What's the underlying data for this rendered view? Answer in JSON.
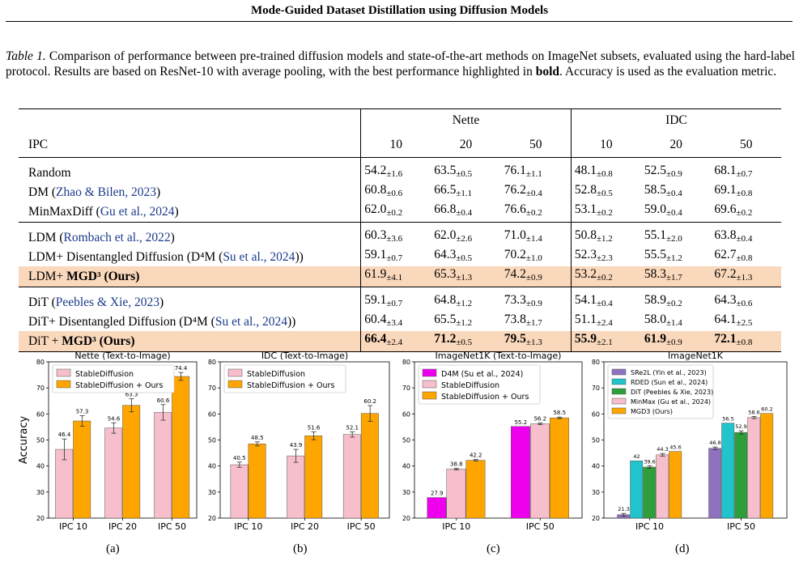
{
  "header": {
    "running_title": "Mode-Guided Dataset Distillation using Diffusion Models"
  },
  "caption": {
    "label": "Table 1.",
    "text_before_bold": " Comparison of performance between pre-trained diffusion models and state-of-the-art methods on ImageNet subsets, evaluated using the hard-label protocol. Results are based on ResNet-10 with average pooling, with the best performance highlighted in ",
    "bold_word": "bold",
    "text_after_bold": ". Accuracy is used as the evaluation metric."
  },
  "table": {
    "group_headers": [
      "Nette",
      "IDC"
    ],
    "ipc_label": "IPC",
    "ipc_values": [
      "10",
      "20",
      "50",
      "10",
      "20",
      "50"
    ],
    "sections": [
      {
        "rows": [
          {
            "name": "Random",
            "cite": "",
            "suffix": "",
            "cells": [
              [
                "54.2",
                "±1.6"
              ],
              [
                "63.5",
                "±0.5"
              ],
              [
                "76.1",
                "±1.1"
              ],
              [
                "48.1",
                "±0.8"
              ],
              [
                "52.5",
                "±0.9"
              ],
              [
                "68.1",
                "±0.7"
              ]
            ]
          },
          {
            "name": "DM (",
            "cite": "Zhao & Bilen, 2023",
            "suffix": ")",
            "cells": [
              [
                "60.8",
                "±0.6"
              ],
              [
                "66.5",
                "±1.1"
              ],
              [
                "76.2",
                "±0.4"
              ],
              [
                "52.8",
                "±0.5"
              ],
              [
                "58.5",
                "±0.4"
              ],
              [
                "69.1",
                "±0.8"
              ]
            ]
          },
          {
            "name": "MinMaxDiff (",
            "cite": "Gu et al., 2024",
            "suffix": ")",
            "cells": [
              [
                "62.0",
                "±0.2"
              ],
              [
                "66.8",
                "±0.4"
              ],
              [
                "76.6",
                "±0.2"
              ],
              [
                "53.1",
                "±0.2"
              ],
              [
                "59.0",
                "±0.4"
              ],
              [
                "69.6",
                "±0.2"
              ]
            ]
          }
        ]
      },
      {
        "rows": [
          {
            "name": "LDM (",
            "cite": "Rombach et al., 2022",
            "suffix": ")",
            "cells": [
              [
                "60.3",
                "±3.6"
              ],
              [
                "62.0",
                "±2.6"
              ],
              [
                "71.0",
                "±1.4"
              ],
              [
                "50.8",
                "±1.2"
              ],
              [
                "55.1",
                "±2.0"
              ],
              [
                "63.8",
                "±0.4"
              ]
            ]
          },
          {
            "name": "LDM+ Disentangled Diffusion (D⁴M (",
            "cite": "Su et al., 2024",
            "suffix": "))",
            "cells": [
              [
                "59.1",
                "±0.7"
              ],
              [
                "64.3",
                "±0.5"
              ],
              [
                "70.2",
                "±1.0"
              ],
              [
                "52.3",
                "±2.3"
              ],
              [
                "55.5",
                "±1.2"
              ],
              [
                "62.7",
                "±0.8"
              ]
            ]
          },
          {
            "name": "LDM+ ",
            "bold_name": "MGD³ (Ours)",
            "highlight": true,
            "cells": [
              [
                "61.9",
                "±4.1"
              ],
              [
                "65.3",
                "±1.3"
              ],
              [
                "74.2",
                "±0.9"
              ],
              [
                "53.2",
                "±0.2"
              ],
              [
                "58.3",
                "±1.7"
              ],
              [
                "67.2",
                "±1.3"
              ]
            ]
          }
        ]
      },
      {
        "rows": [
          {
            "name": "DiT (",
            "cite": "Peebles & Xie, 2023",
            "suffix": ")",
            "cells": [
              [
                "59.1",
                "±0.7"
              ],
              [
                "64.8",
                "±1.2"
              ],
              [
                "73.3",
                "±0.9"
              ],
              [
                "54.1",
                "±0.4"
              ],
              [
                "58.9",
                "±0.2"
              ],
              [
                "64.3",
                "±0.6"
              ]
            ]
          },
          {
            "name": "DiT+ Disentangled Diffusion (D⁴M (",
            "cite": "Su et al., 2024",
            "suffix": "))",
            "cells": [
              [
                "60.4",
                "±3.4"
              ],
              [
                "65.5",
                "±1.2"
              ],
              [
                "73.8",
                "±1.7"
              ],
              [
                "51.1",
                "±2.4"
              ],
              [
                "58.0",
                "±1.4"
              ],
              [
                "64.1",
                "±2.5"
              ]
            ]
          },
          {
            "name": "DiT + ",
            "bold_name": "MGD³ (Ours)",
            "highlight": true,
            "bold_cells": true,
            "cells": [
              [
                "66.4",
                "±2.4"
              ],
              [
                "71.2",
                "±0.5"
              ],
              [
                "79.5",
                "±1.3"
              ],
              [
                "55.9",
                "±2.1"
              ],
              [
                "61.9",
                "±0.9"
              ],
              [
                "72.1",
                "±0.8"
              ]
            ]
          }
        ]
      }
    ]
  },
  "colors": {
    "stable_diffusion": "#f7bfcb",
    "ours": "#ffa500",
    "d4m": "#ee00ee",
    "sre2l": "#8e72c0",
    "rded": "#21c4cc",
    "dit": "#2e9e3a",
    "minmax": "#f7bfcb",
    "mgd3": "#ffa500",
    "highlight_row": "#fad8bb"
  },
  "chart_data": [
    {
      "type": "bar",
      "title": "Nette (Text-to-Image)",
      "ylabel": "Accuracy",
      "ylim": [
        20,
        80
      ],
      "yticks": [
        20,
        30,
        40,
        50,
        60,
        70,
        80
      ],
      "grid": false,
      "legend_position": "top-left",
      "categories": [
        "IPC 10",
        "IPC 20",
        "IPC 50"
      ],
      "series": [
        {
          "name": "StableDiffusion",
          "color_key": "stable_diffusion",
          "values": [
            46.4,
            54.6,
            60.6
          ],
          "errors": [
            4.0,
            2.0,
            3.0
          ]
        },
        {
          "name": "StableDiffusion + Ours",
          "color_key": "ours",
          "values": [
            57.3,
            63.3,
            74.4
          ],
          "errors": [
            2.0,
            2.5,
            1.5
          ]
        }
      ],
      "sublabel": "(a)"
    },
    {
      "type": "bar",
      "title": "IDC (Text-to-Image)",
      "ylabel": "",
      "ylim": [
        20,
        80
      ],
      "yticks": [
        20,
        30,
        40,
        50,
        60,
        70,
        80
      ],
      "grid": false,
      "legend_position": "top-left",
      "categories": [
        "IPC 10",
        "IPC 20",
        "IPC 50"
      ],
      "series": [
        {
          "name": "StableDiffusion",
          "color_key": "stable_diffusion",
          "values": [
            40.5,
            43.9,
            52.1
          ],
          "errors": [
            1.0,
            2.5,
            1.0
          ]
        },
        {
          "name": "StableDiffusion + Ours",
          "color_key": "ours",
          "values": [
            48.5,
            51.6,
            60.2
          ],
          "errors": [
            0.8,
            1.5,
            3.0
          ]
        }
      ],
      "sublabel": "(b)"
    },
    {
      "type": "bar",
      "title": "ImageNet1K (Text-to-Image)",
      "ylabel": "",
      "ylim": [
        20,
        80
      ],
      "yticks": [
        20,
        30,
        40,
        50,
        60,
        70,
        80
      ],
      "grid": false,
      "legend_position": "top-left",
      "categories": [
        "IPC 10",
        "IPC 50"
      ],
      "series": [
        {
          "name": "D4M (Su et al., 2024)",
          "color_key": "d4m",
          "values": [
            27.9,
            55.2
          ],
          "errors": [
            0,
            0
          ]
        },
        {
          "name": "StableDiffusion",
          "color_key": "stable_diffusion",
          "values": [
            38.8,
            56.2
          ],
          "errors": [
            0.3,
            0.3
          ]
        },
        {
          "name": "StableDiffusion + Ours",
          "color_key": "ours",
          "values": [
            42.2,
            58.5
          ],
          "errors": [
            0.3,
            0.3
          ]
        }
      ],
      "sublabel": "(c)"
    },
    {
      "type": "bar",
      "title": "ImageNet1K",
      "ylabel": "",
      "ylim": [
        20,
        80
      ],
      "yticks": [
        20,
        30,
        40,
        50,
        60,
        70,
        80
      ],
      "grid": false,
      "legend_position": "top-left",
      "categories": [
        "IPC 10",
        "IPC 50"
      ],
      "series": [
        {
          "name": "SRe2L (Yin et al., 2023)",
          "color_key": "sre2l",
          "values": [
            21.3,
            46.8
          ],
          "errors": [
            0.5,
            0.5
          ]
        },
        {
          "name": "RDED (Sun et al., 2024)",
          "color_key": "rded",
          "values": [
            42.0,
            56.5
          ],
          "errors": [
            0,
            0
          ]
        },
        {
          "name": "DiT (Peebles & Xie, 2023)",
          "color_key": "dit",
          "values": [
            39.6,
            52.9
          ],
          "errors": [
            0.5,
            0.6
          ]
        },
        {
          "name": "MinMax (Gu et al., 2024)",
          "color_key": "minmax",
          "values": [
            44.3,
            58.6
          ],
          "errors": [
            0.5,
            0.4
          ]
        },
        {
          "name": "MGD3 (Ours)",
          "color_key": "mgd3",
          "values": [
            45.6,
            60.2
          ],
          "errors": [
            0,
            0
          ]
        }
      ],
      "sublabel": "(d)"
    }
  ]
}
